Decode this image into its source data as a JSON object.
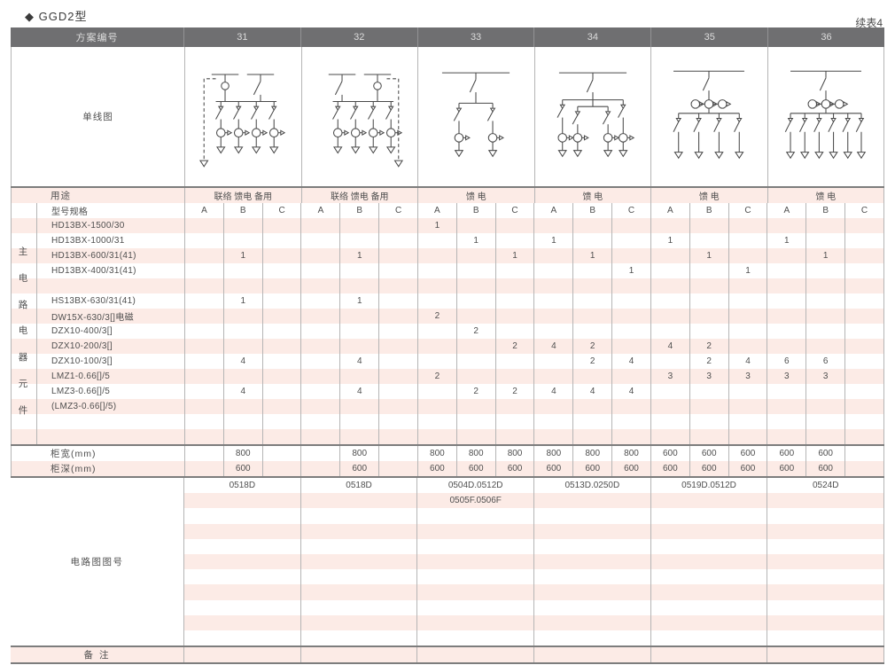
{
  "page": {
    "title": "◆ GGD2型",
    "continuation": "续表4"
  },
  "header": {
    "label": "方案编号",
    "schemes": [
      "31",
      "32",
      "33",
      "34",
      "35",
      "36"
    ]
  },
  "diagrams": {
    "label": "单线图",
    "schemes": [
      {
        "id": "31",
        "kind": "tie",
        "dashed": "left"
      },
      {
        "id": "32",
        "kind": "tie",
        "dashed": "right"
      },
      {
        "id": "33",
        "kind": "radial",
        "feeders": 2,
        "ct": "per-feeder"
      },
      {
        "id": "34",
        "kind": "radial",
        "feeders": 4,
        "ct": "per-feeder"
      },
      {
        "id": "35",
        "kind": "radial",
        "feeders": 4,
        "ct": "incomer-row"
      },
      {
        "id": "36",
        "kind": "radial",
        "feeders": 6,
        "ct": "incomer-row"
      }
    ]
  },
  "usage": {
    "label": "用途",
    "values": [
      "联络 馈电 备用",
      "联络 馈电 备用",
      "馈 电",
      "馈 电",
      "馈 电",
      "馈 电"
    ]
  },
  "spec": {
    "label": "型号规格",
    "subcols": [
      "A",
      "B",
      "C"
    ]
  },
  "side_label": "主电路电器元件",
  "component_rows": [
    {
      "model": "HD13BX-1500/30",
      "cells": [
        "",
        "",
        "",
        "",
        "",
        "",
        "1",
        "",
        "",
        "",
        "",
        "",
        "",
        "",
        "",
        "",
        "",
        ""
      ]
    },
    {
      "model": "HD13BX-1000/31",
      "cells": [
        "",
        "",
        "",
        "",
        "",
        "",
        "",
        "1",
        "",
        "1",
        "",
        "",
        "1",
        "",
        "",
        "1",
        "",
        ""
      ]
    },
    {
      "model": "HD13BX-600/31(41)",
      "cells": [
        "",
        "1",
        "",
        "",
        "1",
        "",
        "",
        "",
        "1",
        "",
        "1",
        "",
        "",
        "1",
        "",
        "",
        "1",
        ""
      ]
    },
    {
      "model": "HD13BX-400/31(41)",
      "cells": [
        "",
        "",
        "",
        "",
        "",
        "",
        "",
        "",
        "",
        "",
        "",
        "1",
        "",
        "",
        "1",
        "",
        "",
        ""
      ]
    },
    {
      "model": "",
      "cells": [
        "",
        "",
        "",
        "",
        "",
        "",
        "",
        "",
        "",
        "",
        "",
        "",
        "",
        "",
        "",
        "",
        "",
        ""
      ]
    },
    {
      "model": "HS13BX-630/31(41)",
      "cells": [
        "",
        "1",
        "",
        "",
        "1",
        "",
        "",
        "",
        "",
        "",
        "",
        "",
        "",
        "",
        "",
        "",
        "",
        ""
      ]
    },
    {
      "model": "DW15X-630/3[]电磁",
      "cells": [
        "",
        "",
        "",
        "",
        "",
        "",
        "2",
        "",
        "",
        "",
        "",
        "",
        "",
        "",
        "",
        "",
        "",
        ""
      ]
    },
    {
      "model": "DZX10-400/3[]",
      "cells": [
        "",
        "",
        "",
        "",
        "",
        "",
        "",
        "2",
        "",
        "",
        "",
        "",
        "",
        "",
        "",
        "",
        "",
        ""
      ]
    },
    {
      "model": "DZX10-200/3[]",
      "cells": [
        "",
        "",
        "",
        "",
        "",
        "",
        "",
        "",
        "2",
        "4",
        "2",
        "",
        "4",
        "2",
        "",
        "",
        "",
        ""
      ]
    },
    {
      "model": "DZX10-100/3[]",
      "cells": [
        "",
        "4",
        "",
        "",
        "4",
        "",
        "",
        "",
        "",
        "",
        "2",
        "4",
        "",
        "2",
        "4",
        "6",
        "6",
        ""
      ]
    },
    {
      "model": "LMZ1-0.66[]/5",
      "cells": [
        "",
        "",
        "",
        "",
        "",
        "",
        "2",
        "",
        "",
        "",
        "",
        "",
        "3",
        "3",
        "3",
        "3",
        "3",
        ""
      ]
    },
    {
      "model": "LMZ3-0.66[]/5",
      "cells": [
        "",
        "4",
        "",
        "",
        "4",
        "",
        "",
        "2",
        "2",
        "4",
        "4",
        "4",
        "",
        "",
        "",
        "",
        "",
        ""
      ]
    },
    {
      "model": "(LMZ3-0.66[]/5)",
      "cells": [
        "",
        "",
        "",
        "",
        "",
        "",
        "",
        "",
        "",
        "",
        "",
        "",
        "",
        "",
        "",
        "",
        "",
        ""
      ]
    },
    {
      "model": "",
      "cells": [
        "",
        "",
        "",
        "",
        "",
        "",
        "",
        "",
        "",
        "",
        "",
        "",
        "",
        "",
        "",
        "",
        "",
        ""
      ]
    },
    {
      "model": "",
      "cells": [
        "",
        "",
        "",
        "",
        "",
        "",
        "",
        "",
        "",
        "",
        "",
        "",
        "",
        "",
        "",
        "",
        "",
        ""
      ]
    }
  ],
  "cabinet_width": {
    "label": "柜宽(mm)",
    "cells": [
      "",
      "800",
      "",
      "",
      "800",
      "",
      "800",
      "800",
      "800",
      "800",
      "800",
      "800",
      "600",
      "600",
      "600",
      "600",
      "600",
      ""
    ]
  },
  "cabinet_depth": {
    "label": "柜深(mm)",
    "cells": [
      "",
      "600",
      "",
      "",
      "600",
      "",
      "600",
      "600",
      "600",
      "600",
      "600",
      "600",
      "600",
      "600",
      "600",
      "600",
      "600",
      ""
    ]
  },
  "circuit_numbers": {
    "label": "电路图图号",
    "line1": [
      "0518D",
      "0518D",
      "0504D.0512D",
      "0513D.0250D",
      "0519D.0512D",
      "0524D"
    ],
    "line2": [
      "",
      "",
      "0505F.0506F",
      "",
      "",
      ""
    ],
    "empty_rows": 9
  },
  "remarks": {
    "label": "备 注"
  },
  "colors": {
    "header_bg": "#6f6f71",
    "header_text": "#dcdcdc",
    "stripe": "#fcebe6",
    "grid": "#b5b5b5",
    "dark_line": "#7d7d7d",
    "text": "#4f4f4f"
  }
}
